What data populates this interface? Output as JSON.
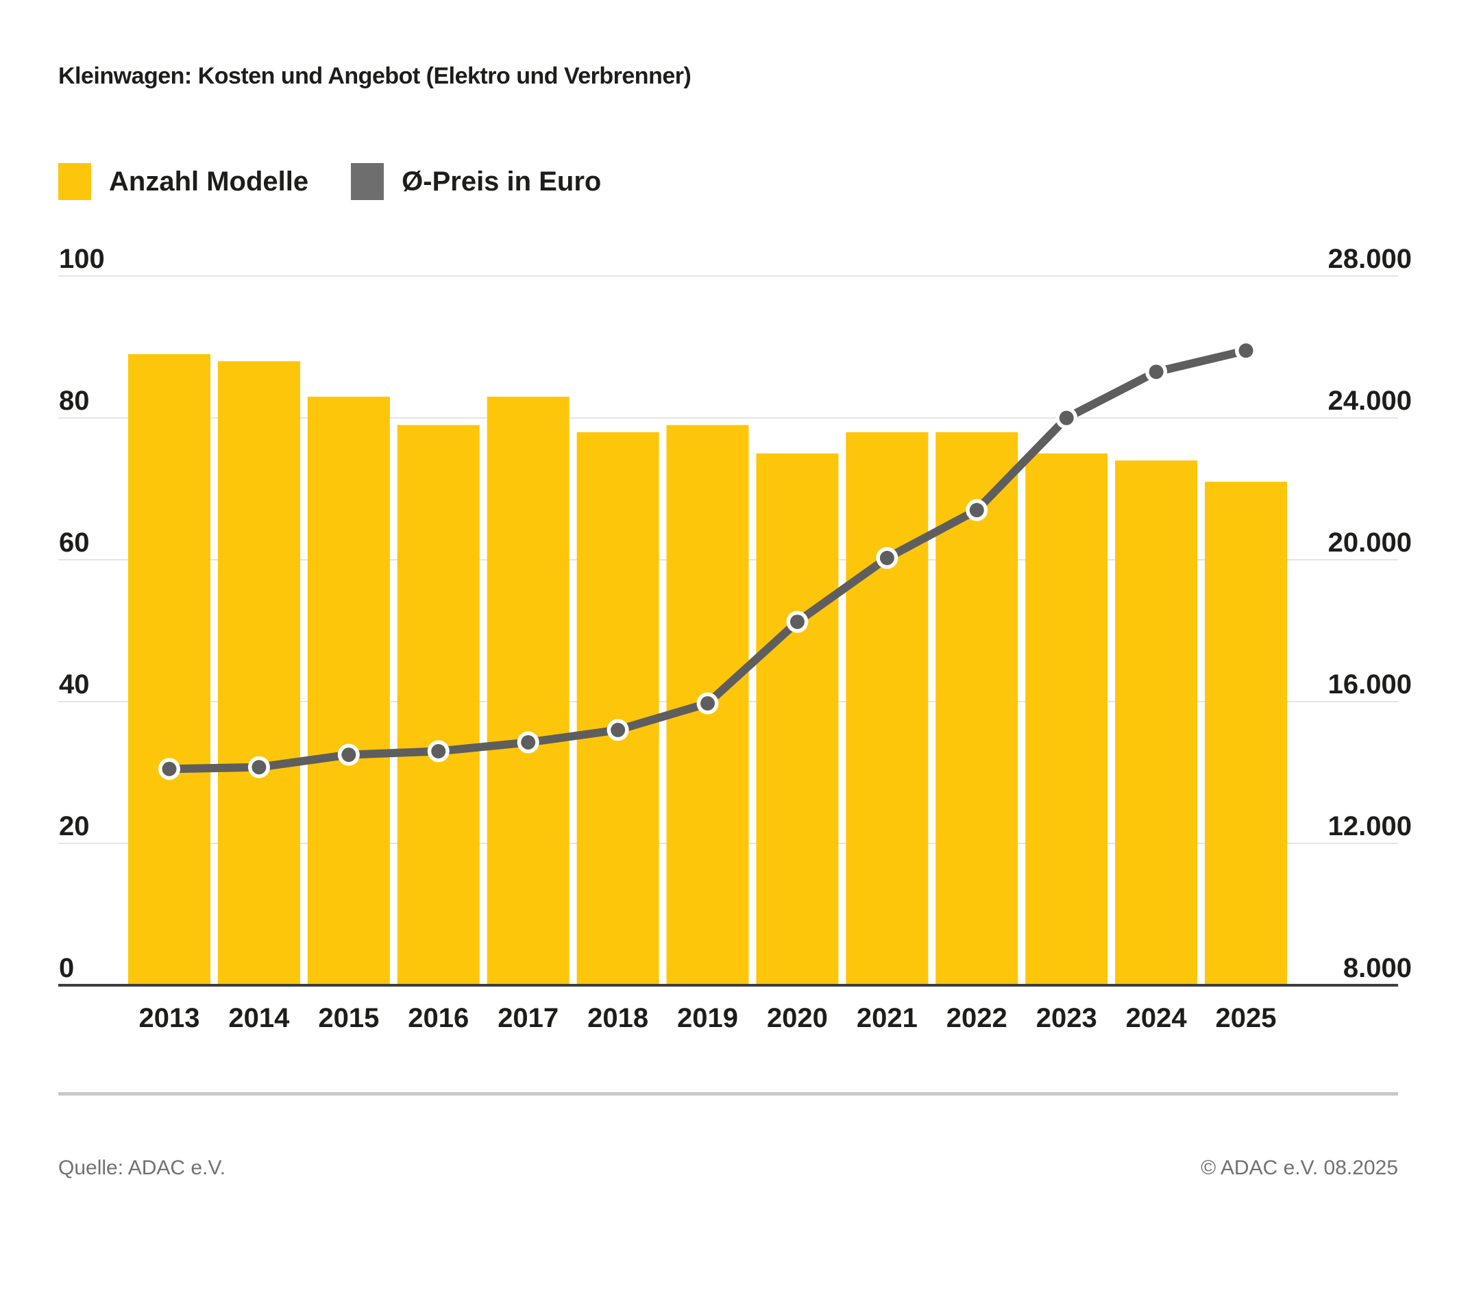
{
  "title": "Kleinwagen: Kosten und Angebot (Elektro und Verbrenner)",
  "legend": {
    "items": [
      {
        "label": "Anzahl Modelle",
        "color": "#fdc60a"
      },
      {
        "label": "Ø-Preis in Euro",
        "color": "#6e6e6e"
      }
    ]
  },
  "chart_data": {
    "type": "bar",
    "subtype": "bar+line combo, dual axis",
    "title": "Kleinwagen: Kosten und Angebot (Elektro und Verbrenner)",
    "categories": [
      2013,
      2014,
      2015,
      2016,
      2017,
      2018,
      2019,
      2020,
      2021,
      2022,
      2023,
      2024,
      2025
    ],
    "series": [
      {
        "name": "Anzahl Modelle",
        "type": "bar",
        "axis": "left",
        "color": "#fdc60a",
        "values": [
          89,
          88,
          83,
          79,
          83,
          78,
          79,
          75,
          78,
          78,
          75,
          74,
          71
        ]
      },
      {
        "name": "Ø-Preis in Euro",
        "type": "line",
        "axis": "right",
        "color": "#5f5e5e",
        "values": [
          14100,
          14150,
          14500,
          14600,
          14850,
          15200,
          15950,
          18250,
          20050,
          21400,
          24000,
          25300,
          25900
        ]
      }
    ],
    "left_axis": {
      "min": 0,
      "max": 100,
      "ticks": [
        0,
        20,
        40,
        60,
        80,
        100
      ]
    },
    "right_axis": {
      "min": 8000,
      "max": 28000,
      "ticks": [
        8000,
        12000,
        16000,
        20000,
        24000,
        28000
      ]
    },
    "grid": true,
    "legend_position": "top-left",
    "xlabel": "",
    "ylabel_left": "Anzahl Modelle",
    "ylabel_right": "Ø-Preis in Euro"
  },
  "footer": {
    "source": "Quelle: ADAC e.V.",
    "copyright": "© ADAC e.V. 08.2025"
  },
  "colors": {
    "bar": "#fdc60a",
    "line": "#5f5e5e",
    "gridline": "#e4e4e4",
    "axis_line": "#3d3d3d",
    "text": "#1d1d1b",
    "footer_text": "#71716f",
    "divider": "#c9c9c9",
    "background": "#ffffff"
  }
}
